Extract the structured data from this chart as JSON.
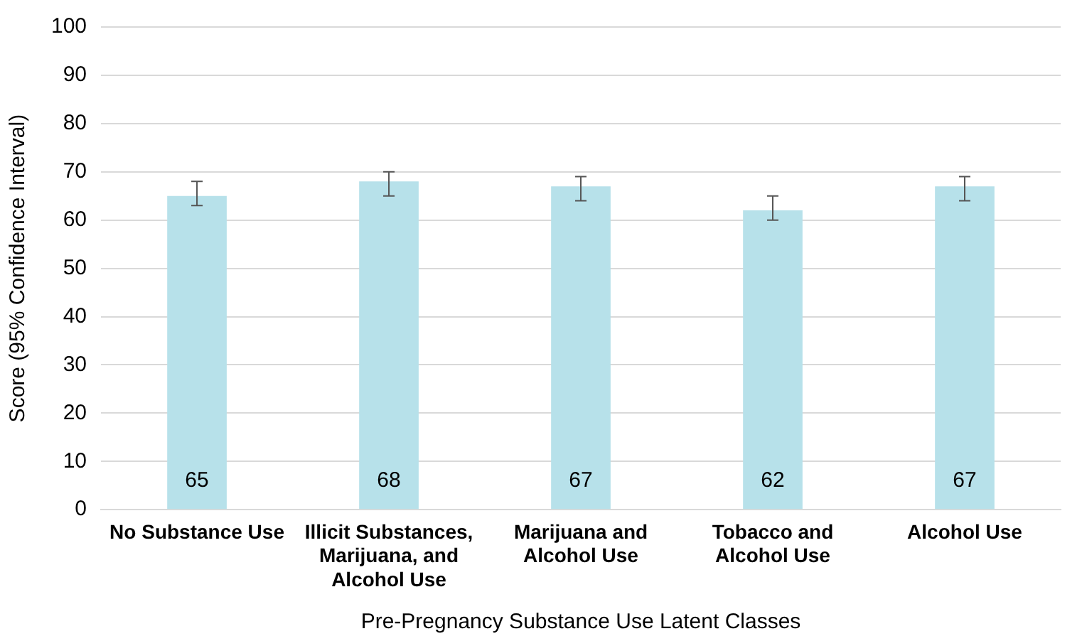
{
  "chart_data": {
    "type": "bar",
    "xlabel": "Pre-Pregnancy Substance Use Latent Classes",
    "ylabel": "Score (95% Confidence Interval)",
    "categories": [
      "No Substance Use",
      "Illicit Substances, Marijuana, and Alcohol Use",
      "Marijuana and Alcohol Use",
      "Tobacco and Alcohol Use",
      "Alcohol Use"
    ],
    "values": [
      65,
      68,
      67,
      62,
      67
    ],
    "color": "#b7e1ea",
    "errors": [
      [
        63,
        68
      ],
      [
        65,
        70
      ],
      [
        64,
        69
      ],
      [
        60,
        65
      ],
      [
        64,
        69
      ]
    ],
    "ylim": [
      0,
      100
    ],
    "yticks": [
      0,
      10,
      20,
      30,
      40,
      50,
      60,
      70,
      80,
      90,
      100
    ],
    "grid": "y",
    "data_labels": true,
    "legend": false
  }
}
